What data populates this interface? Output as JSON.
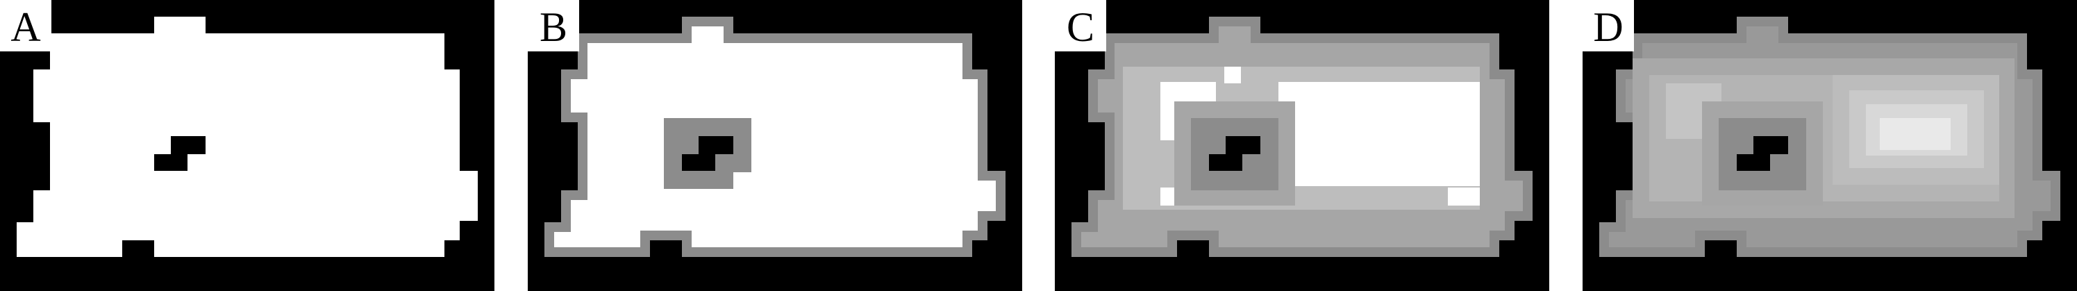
{
  "panels": [
    {
      "id": "A",
      "label": "A"
    },
    {
      "id": "B",
      "label": "B"
    },
    {
      "id": "C",
      "label": "C"
    },
    {
      "id": "D",
      "label": "D"
    }
  ],
  "colors": {
    "background": "#000000",
    "separator": "#ffffff",
    "shape_fill": "#ffffff",
    "border_level_1": "#8c8c8c",
    "border_level_2": "#a6a6a6",
    "border_level_3": "#bdbdbd",
    "highlight_core": "#e9e9e9"
  }
}
